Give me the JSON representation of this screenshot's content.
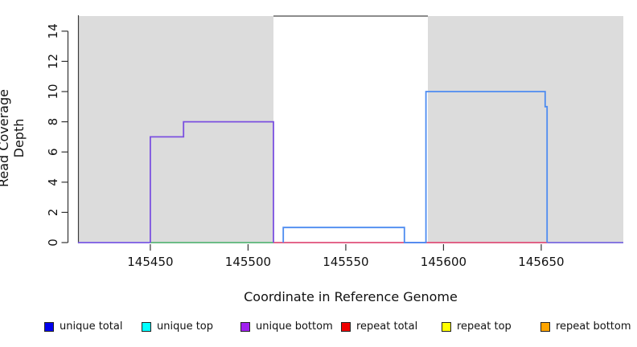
{
  "chart_data": {
    "type": "line",
    "subtype": "step-coverage",
    "xlabel": "Coordinate in Reference Genome",
    "ylabel": "Read Coverage Depth",
    "xlim": [
      145413,
      145692
    ],
    "ylim": [
      0,
      15
    ],
    "x_ticks": [
      145450,
      145500,
      145550,
      145600,
      145650
    ],
    "x_tick_labels": [
      "145450",
      "145500",
      "145550",
      "145600",
      "145650"
    ],
    "y_ticks": [
      0,
      2,
      4,
      6,
      8,
      10,
      12,
      14
    ],
    "y_tick_labels": [
      "0",
      "2",
      "4",
      "6",
      "8",
      "10",
      "12",
      "14"
    ],
    "grid": false,
    "plot_bg": "#ffffff",
    "shaded_regions": [
      {
        "name": "masked-region-left",
        "from": 145413,
        "to": 145513,
        "color": "#dcdcdc"
      },
      {
        "name": "masked-region-right",
        "from": 145592,
        "to": 145692,
        "color": "#dcdcdc"
      }
    ],
    "clipped_top_line": {
      "value": 15,
      "from": 145513,
      "to": 145592,
      "color": "#8c8c8c"
    },
    "series": [
      {
        "name": "unique bottom",
        "color": "#7b50e0",
        "points": [
          [
            145450,
            0
          ],
          [
            145450,
            7
          ],
          [
            145467,
            7
          ],
          [
            145467,
            8
          ],
          [
            145513,
            8
          ],
          [
            145513,
            0
          ]
        ]
      },
      {
        "name": "unique total",
        "color": "#4d8bf0",
        "points": [
          [
            145518,
            0
          ],
          [
            145518,
            1
          ],
          [
            145580,
            1
          ],
          [
            145580,
            0
          ],
          [
            145591,
            0
          ],
          [
            145591,
            10
          ],
          [
            145652,
            10
          ],
          [
            145652,
            9
          ],
          [
            145653,
            9
          ],
          [
            145653,
            0
          ]
        ]
      }
    ],
    "zero_line_segments": [
      {
        "name": "zero-purple-left",
        "from": 145413,
        "to": 145450,
        "color": "#7b5be6"
      },
      {
        "name": "zero-green",
        "from": 145450,
        "to": 145513,
        "color": "#5cb87a"
      },
      {
        "name": "zero-red-gap",
        "from": 145513,
        "to": 145580,
        "color": "#e0507a"
      },
      {
        "name": "zero-violet-mid",
        "from": 145580,
        "to": 145591,
        "color": "#7a6ae0"
      },
      {
        "name": "zero-red-right",
        "from": 145591,
        "to": 145653,
        "color": "#e0507a"
      },
      {
        "name": "zero-violet-right",
        "from": 145653,
        "to": 145692,
        "color": "#7a6ae0"
      }
    ],
    "legend": {
      "position": "bottom",
      "items": [
        {
          "label": "unique total",
          "color": "#0000ee"
        },
        {
          "label": "unique top",
          "color": "#00ffff"
        },
        {
          "label": "unique bottom",
          "color": "#a020f0"
        },
        {
          "label": "repeat total",
          "color": "#ee0000"
        },
        {
          "label": "repeat top",
          "color": "#ffff00"
        },
        {
          "label": "repeat bottom",
          "color": "#ffa500"
        }
      ]
    }
  },
  "labels": {
    "x_axis_title": "Coordinate in Reference Genome",
    "y_axis_title": "Read Coverage Depth"
  }
}
